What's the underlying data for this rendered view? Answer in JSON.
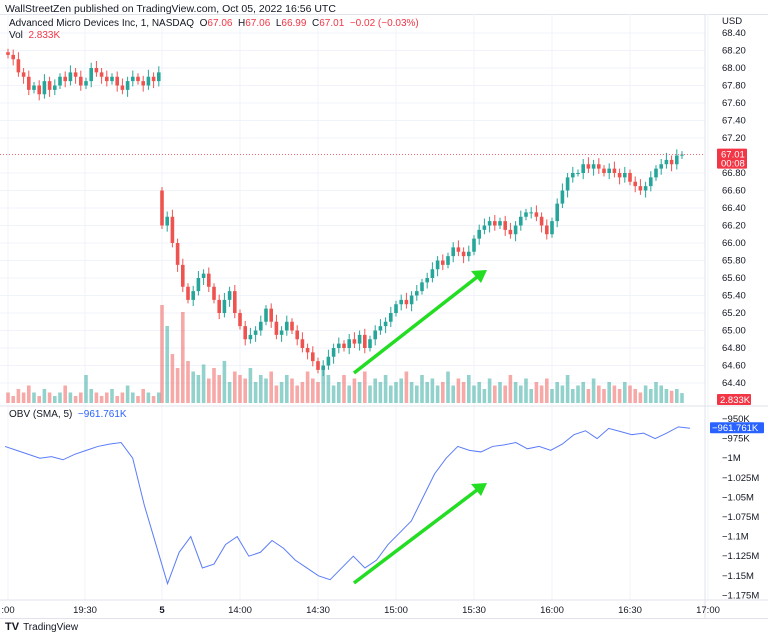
{
  "published": "WallStreetZen published on TradingView.com, Oct 05, 2022 16:56 UTC",
  "legend": {
    "symbol": "Advanced Micro Devices Inc, 1, NASDAQ",
    "o_label": "O",
    "o": "67.06",
    "h_label": "H",
    "h": "67.06",
    "l_label": "L",
    "l": "66.99",
    "c_label": "C",
    "c": "67.01",
    "change": "−0.02 (−0.03%)",
    "vol_label": "Vol",
    "vol": "2.833K"
  },
  "obv_legend": {
    "label": "OBV (SMA, 5)",
    "value": "−961.761K"
  },
  "footer": {
    "brand": "TradingView"
  },
  "colors": {
    "up": "#26a69a",
    "down": "#ef5350",
    "obv": "#5b7cf7",
    "arrow": "#22dd22",
    "price_tag": "#f23645",
    "obv_tag": "#2962ff"
  },
  "chart_data": [
    {
      "type": "candlestick",
      "currency": "USD",
      "ylim": [
        64.3,
        68.5
      ],
      "yticks": [
        "68.40",
        "68.20",
        "68.00",
        "67.80",
        "67.60",
        "67.40",
        "67.20",
        "66.80",
        "66.60",
        "66.40",
        "66.20",
        "66.00",
        "65.80",
        "65.60",
        "65.40",
        "65.20",
        "65.00",
        "64.80",
        "64.60",
        "64.40"
      ],
      "last_price": "67.01",
      "countdown": "00:08",
      "last_volume": "2.833K",
      "xticks": [
        ":00",
        "19:30",
        "5",
        "14:00",
        "14:30",
        "15:00",
        "15:30",
        "16:00",
        "16:30",
        "17:00"
      ],
      "prev_session_close": [
        68.15,
        68.1,
        67.95,
        67.9,
        67.75,
        67.8,
        67.7,
        67.85,
        67.75,
        67.8,
        67.9,
        67.85,
        67.95,
        67.9,
        67.8,
        67.85,
        68.0,
        67.95,
        67.9,
        67.85,
        67.9,
        67.8,
        67.75,
        67.85,
        67.9,
        67.85,
        67.8,
        67.9,
        67.85,
        67.95
      ],
      "session_open": 66.6,
      "session_close": [
        66.2,
        66.3,
        66.0,
        65.75,
        65.5,
        65.35,
        65.45,
        65.6,
        65.65,
        65.5,
        65.35,
        65.2,
        65.35,
        65.45,
        65.2,
        65.05,
        64.9,
        64.95,
        65.0,
        65.1,
        65.25,
        65.1,
        64.95,
        65.0,
        65.1,
        65.0,
        64.9,
        64.8,
        64.75,
        64.65,
        64.55,
        64.6,
        64.7,
        64.8,
        64.85,
        64.8,
        64.9,
        64.85,
        64.95,
        64.8,
        64.9,
        65.0,
        65.05,
        65.1,
        65.2,
        65.3,
        65.35,
        65.3,
        65.4,
        65.45,
        65.55,
        65.6,
        65.7,
        65.8,
        65.75,
        65.85,
        65.95,
        65.9,
        65.85,
        65.9,
        66.05,
        66.15,
        66.2,
        66.25,
        66.2,
        66.25,
        66.15,
        66.1,
        66.2,
        66.3,
        66.35,
        66.35,
        66.3,
        66.2,
        66.1,
        66.25,
        66.45,
        66.6,
        66.75,
        66.8,
        66.8,
        66.9,
        66.85,
        66.9,
        66.85,
        66.8,
        66.85,
        66.8,
        66.75,
        66.8,
        66.7,
        66.65,
        66.6,
        66.65,
        66.75,
        66.85,
        66.9,
        66.95,
        66.9,
        67.0,
        67.01
      ],
      "volume_k": [
        3,
        2,
        4,
        3,
        5,
        3,
        2,
        4,
        3,
        2,
        3,
        5,
        3,
        2,
        3,
        8,
        4,
        3,
        2,
        3,
        4,
        2,
        3,
        5,
        3,
        2,
        4,
        3,
        2,
        3,
        28,
        22,
        14,
        10,
        26,
        12,
        9,
        8,
        11,
        7,
        10,
        8,
        12,
        6,
        9,
        8,
        7,
        10,
        6,
        8,
        7,
        9,
        5,
        6,
        8,
        7,
        5,
        6,
        9,
        7,
        6,
        10,
        8,
        5,
        6,
        8,
        5,
        7,
        6,
        9,
        5,
        7,
        6,
        8,
        5,
        6,
        7,
        9,
        6,
        5,
        8,
        6,
        7,
        5,
        6,
        9,
        5,
        7,
        6,
        8,
        5,
        6,
        4,
        7,
        5,
        6,
        5,
        8,
        6,
        5,
        7,
        4,
        6,
        5,
        7,
        4,
        6,
        5,
        8,
        4,
        5,
        6,
        4,
        7,
        5,
        4,
        6,
        5,
        4,
        6,
        5,
        4,
        3,
        5,
        4,
        6,
        5,
        4,
        3.5,
        4,
        2.833
      ]
    },
    {
      "type": "line",
      "name": "OBV (SMA, 5)",
      "ylim": [
        -1185000,
        -940000
      ],
      "yticks": [
        "−950K",
        "−975K",
        "−1M",
        "−1.025M",
        "−1.05M",
        "−1.075M",
        "−1.1M",
        "−1.125M",
        "−1.15M",
        "−1.175M"
      ],
      "last_value": "−961.761K",
      "values_k": [
        -985,
        -990,
        -995,
        -1000,
        -998,
        -1002,
        -995,
        -990,
        -985,
        -982,
        -980,
        -1000,
        -1060,
        -1110,
        -1160,
        -1120,
        -1100,
        -1140,
        -1135,
        -1110,
        -1100,
        -1125,
        -1120,
        -1105,
        -1115,
        -1130,
        -1140,
        -1150,
        -1155,
        -1140,
        -1125,
        -1140,
        -1130,
        -1110,
        -1095,
        -1080,
        -1050,
        -1020,
        -1000,
        -985,
        -990,
        -992,
        -985,
        -983,
        -980,
        -988,
        -985,
        -990,
        -982,
        -970,
        -965,
        -975,
        -962,
        -966,
        -970,
        -968,
        -975,
        -968,
        -960,
        -961.761
      ]
    }
  ]
}
